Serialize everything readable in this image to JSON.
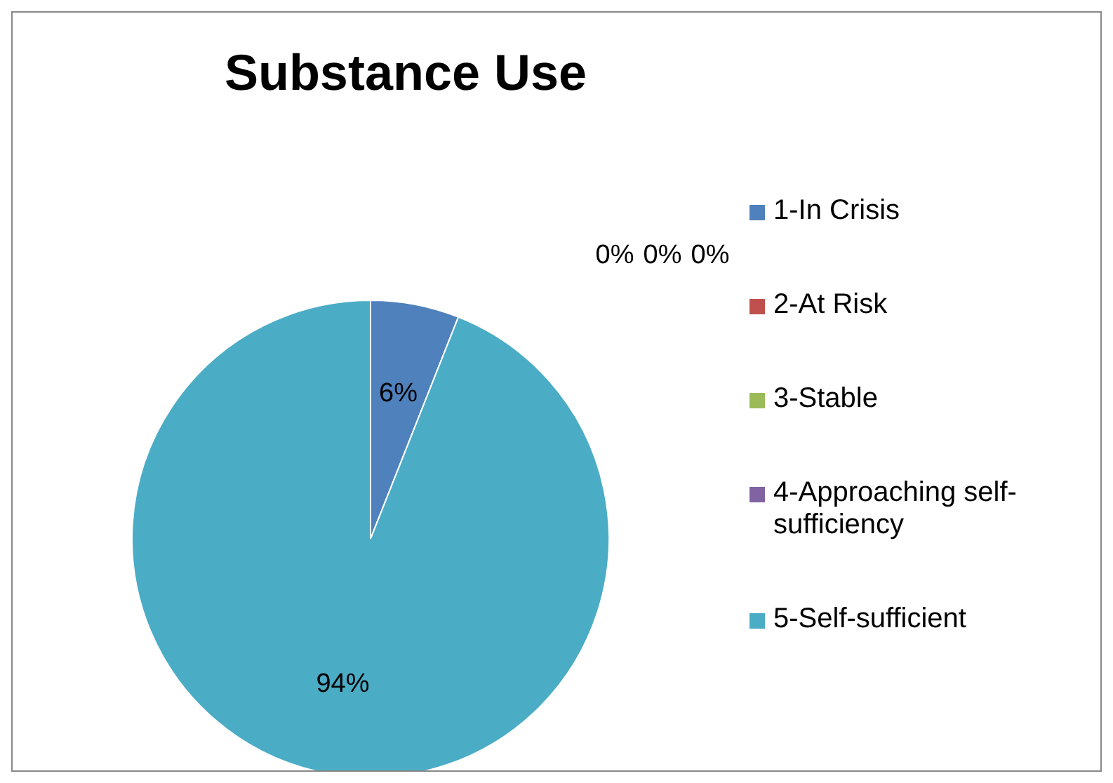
{
  "chart_data": {
    "type": "pie",
    "title": "Substance Use",
    "categories": [
      "1-In Crisis",
      "2-At Risk",
      "3-Stable",
      "4-Approaching self-sufficiency",
      "5-Self-sufficient"
    ],
    "values": [
      6,
      0,
      0,
      0,
      94
    ],
    "colors": [
      "#4f81bd",
      "#c0504d",
      "#9bbb59",
      "#8064a2",
      "#4bacc6"
    ],
    "value_labels": [
      "6%",
      "0%",
      "0%",
      "0%",
      "94%"
    ],
    "legend": "right"
  }
}
